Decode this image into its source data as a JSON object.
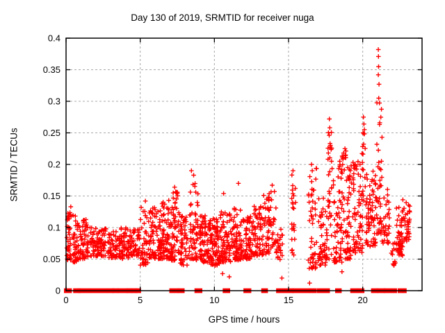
{
  "chart_data": {
    "type": "scatter",
    "title": "Day 130 of 2019, SRMTID for receiver nuga",
    "xlabel": "GPS time / hours",
    "ylabel": "SRMTID / TECUs",
    "xlim": [
      0,
      24
    ],
    "ylim": [
      0,
      0.4
    ],
    "xticks": [
      0,
      5,
      10,
      15,
      20
    ],
    "xtick_labels": [
      "0",
      "5",
      "10",
      "15",
      "20"
    ],
    "yticks": [
      0,
      0.05,
      0.1,
      0.15,
      0.2,
      0.25,
      0.3,
      0.35,
      0.4
    ],
    "ytick_labels": [
      "0",
      "0.05",
      "0.1",
      "0.15",
      "0.2",
      "0.25",
      "0.3",
      "0.35",
      "0.4"
    ],
    "grid": true,
    "legend": "none",
    "marker": {
      "shape": "plus",
      "color": "#ff0000",
      "size": 7
    },
    "grid_color": "#a8a8a8",
    "axis_color": "#000000",
    "seed": 42,
    "clusters": [
      [
        0.05,
        0.35,
        0.048,
        0.13,
        40,
        1.4
      ],
      [
        0.45,
        0.9,
        0.045,
        0.12,
        48,
        1.5
      ],
      [
        0.95,
        1.5,
        0.05,
        0.115,
        55,
        1.5
      ],
      [
        1.6,
        2.7,
        0.055,
        0.1,
        85,
        1.5
      ],
      [
        2.8,
        3.45,
        0.052,
        0.095,
        48,
        1.4
      ],
      [
        3.5,
        4.2,
        0.05,
        0.1,
        58,
        1.4
      ],
      [
        4.2,
        4.95,
        0.055,
        0.098,
        52,
        1.4
      ],
      [
        5.0,
        5.6,
        0.04,
        0.135,
        42,
        1.4
      ],
      [
        5.6,
        6.4,
        0.05,
        0.132,
        85,
        1.5
      ],
      [
        6.4,
        7.1,
        0.05,
        0.145,
        78,
        1.5
      ],
      [
        7.1,
        7.65,
        0.048,
        0.158,
        60,
        1.5
      ],
      [
        7.7,
        8.25,
        0.04,
        0.12,
        48,
        1.4
      ],
      [
        8.3,
        8.9,
        0.048,
        0.172,
        58,
        1.5
      ],
      [
        9.0,
        9.7,
        0.045,
        0.12,
        80,
        1.5
      ],
      [
        9.7,
        10.4,
        0.04,
        0.115,
        85,
        1.5
      ],
      [
        10.4,
        11.1,
        0.045,
        0.125,
        75,
        1.5
      ],
      [
        11.1,
        11.8,
        0.048,
        0.135,
        70,
        1.5
      ],
      [
        11.8,
        12.6,
        0.05,
        0.12,
        72,
        1.5
      ],
      [
        12.6,
        13.3,
        0.055,
        0.135,
        62,
        1.5
      ],
      [
        13.3,
        14.2,
        0.058,
        0.16,
        72,
        1.4
      ],
      [
        14.2,
        14.6,
        0.048,
        0.1,
        22,
        1.3
      ],
      [
        15.2,
        15.5,
        0.055,
        0.185,
        24,
        1.2
      ],
      [
        16.3,
        16.9,
        0.035,
        0.195,
        48,
        1.5
      ],
      [
        17.0,
        17.6,
        0.04,
        0.15,
        52,
        1.5
      ],
      [
        17.65,
        17.95,
        0.05,
        0.26,
        32,
        1.2
      ],
      [
        18.0,
        18.6,
        0.045,
        0.21,
        58,
        1.6
      ],
      [
        18.6,
        19.3,
        0.05,
        0.225,
        68,
        1.6
      ],
      [
        19.3,
        20.0,
        0.06,
        0.205,
        72,
        1.5
      ],
      [
        19.95,
        20.2,
        0.14,
        0.262,
        14,
        1.1
      ],
      [
        20.2,
        20.9,
        0.07,
        0.195,
        68,
        1.4
      ],
      [
        20.9,
        21.3,
        0.09,
        0.3,
        42,
        1.7
      ],
      [
        21.3,
        21.8,
        0.075,
        0.165,
        32,
        1.4
      ],
      [
        21.9,
        22.25,
        0.04,
        0.08,
        12,
        1.2
      ],
      [
        22.25,
        22.7,
        0.055,
        0.135,
        55,
        1.3
      ],
      [
        22.7,
        23.2,
        0.078,
        0.152,
        36,
        1.2
      ]
    ],
    "outliers": [
      [
        0.32,
        0.133
      ],
      [
        5.35,
        0.142
      ],
      [
        7.32,
        0.164
      ],
      [
        8.45,
        0.19
      ],
      [
        8.6,
        0.183
      ],
      [
        10.62,
        0.154
      ],
      [
        11.62,
        0.17
      ],
      [
        13.9,
        0.167
      ],
      [
        14.05,
        0.157
      ],
      [
        15.3,
        0.19
      ],
      [
        16.55,
        0.2
      ],
      [
        16.6,
        0.19
      ],
      [
        17.75,
        0.272
      ],
      [
        17.78,
        0.258
      ],
      [
        17.74,
        0.246
      ],
      [
        17.8,
        0.233
      ],
      [
        18.45,
        0.205
      ],
      [
        18.8,
        0.225
      ],
      [
        18.85,
        0.215
      ],
      [
        20.05,
        0.275
      ],
      [
        20.08,
        0.264
      ],
      [
        20.02,
        0.25
      ],
      [
        21.05,
        0.382
      ],
      [
        21.06,
        0.371
      ],
      [
        21.07,
        0.355
      ],
      [
        21.05,
        0.342
      ],
      [
        21.1,
        0.327
      ],
      [
        21.08,
        0.305
      ],
      [
        21.15,
        0.266
      ],
      [
        21.3,
        0.243
      ],
      [
        10.55,
        0.027
      ],
      [
        14.55,
        0.02
      ],
      [
        16.42,
        0.012
      ],
      [
        18.6,
        0.03
      ],
      [
        11.0,
        0.022
      ],
      [
        22.1,
        0.04
      ]
    ],
    "zero_runs": [
      [
        0.0,
        0.25
      ],
      [
        0.62,
        0.86
      ],
      [
        0.95,
        1.5
      ],
      [
        1.75,
        2.65
      ],
      [
        2.9,
        3.1
      ],
      [
        3.25,
        3.42
      ],
      [
        3.6,
        4.1
      ],
      [
        4.2,
        4.4
      ],
      [
        4.45,
        4.7
      ],
      [
        4.75,
        4.92
      ],
      [
        7.1,
        7.5
      ],
      [
        7.65,
        7.85
      ],
      [
        8.8,
        9.05
      ],
      [
        10.7,
        10.92
      ],
      [
        12.1,
        12.35
      ],
      [
        13.3,
        13.47
      ],
      [
        14.3,
        15.22
      ],
      [
        15.4,
        16.32
      ],
      [
        16.55,
        16.75
      ],
      [
        17.05,
        17.65
      ],
      [
        18.28,
        18.44
      ],
      [
        19.3,
        19.55
      ],
      [
        19.78,
        19.97
      ],
      [
        20.7,
        20.9
      ],
      [
        21.1,
        21.38
      ],
      [
        21.55,
        22.18
      ],
      [
        22.5,
        22.82
      ]
    ]
  }
}
